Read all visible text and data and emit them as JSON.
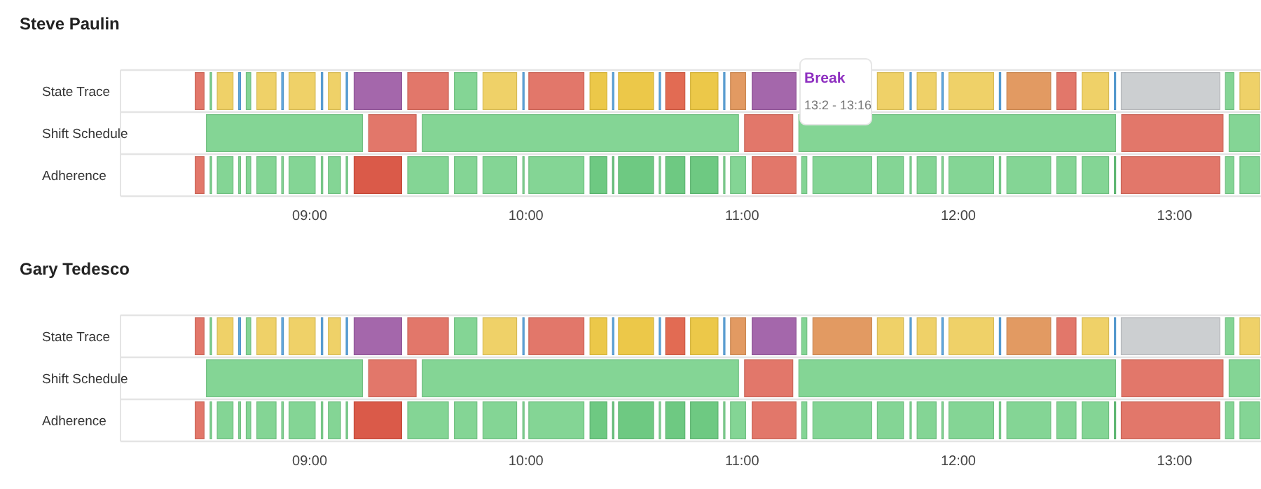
{
  "chart_data": [
    {
      "type": "bar",
      "orientation": "horizontal",
      "title": "Steve Paulin",
      "categories": [
        "State Trace",
        "Shift Schedule",
        "Adherence"
      ],
      "xlim": [
        8.125,
        13.4
      ],
      "xticks": [
        {
          "value": 9,
          "label": "09:00"
        },
        {
          "value": 10,
          "label": "10:00"
        },
        {
          "value": 11,
          "label": "11:00"
        },
        {
          "value": 12,
          "label": "12:00"
        },
        {
          "value": 13,
          "label": "13:00"
        }
      ],
      "annotations": [
        "Break",
        "13:2 - 13:16"
      ],
      "series": [
        {
          "base": [
            8.464,
            8.516,
            8.464
          ],
          "values": [
            0.054,
            0.735,
            0.054
          ],
          "colors": [
            "#e07062",
            "#7dd38f",
            "#e07062"
          ]
        },
        {
          "base": [
            8.533,
            9.266,
            8.533
          ],
          "values": [
            0.02,
            0.233,
            0.02
          ],
          "colors": [
            "#7dd38f",
            "#e07062",
            "#7dd38f"
          ]
        },
        {
          "base": [
            8.566,
            9.514,
            8.566
          ],
          "values": [
            0.086,
            1.476,
            0.086
          ],
          "colors": [
            "#eecf60",
            "#7dd38f",
            "#7dd38f"
          ]
        },
        {
          "base": [
            8.665,
            11.005,
            8.665
          ],
          "values": [
            0.022,
            0.236,
            0.022
          ],
          "colors": [
            "#5aa5df",
            "#e07062",
            "#7dd38f"
          ]
        },
        {
          "base": [
            8.7,
            11.256,
            8.7
          ],
          "values": [
            0.034,
            1.478,
            0.034
          ],
          "colors": [
            "#7dd38f",
            "#7dd38f",
            "#7dd38f"
          ]
        },
        {
          "base": [
            8.749,
            12.749,
            8.749
          ],
          "values": [
            0.102,
            0.482,
            0.102
          ],
          "colors": [
            "#eecf60",
            "#e07062",
            "#7dd38f"
          ]
        },
        {
          "base": [
            8.864,
            13.246,
            8.864
          ],
          "values": [
            0.021,
            0.154,
            0.021
          ],
          "colors": [
            "#5aa5df",
            "#7dd38f",
            "#7dd38f"
          ]
        },
        {
          "base": [
            8.898,
            null,
            8.898
          ],
          "values": [
            0.134,
            null,
            0.134
          ],
          "colors": [
            "#eecf60",
            null,
            "#7dd38f"
          ]
        },
        {
          "base": [
            9.047,
            null,
            9.047
          ],
          "values": [
            0.02,
            null,
            0.02
          ],
          "colors": [
            "#5aa5df",
            null,
            "#7dd38f"
          ]
        },
        {
          "base": [
            9.08,
            null,
            9.08
          ],
          "values": [
            0.069,
            null,
            0.069
          ],
          "colors": [
            "#eecf60",
            null,
            "#7dd38f"
          ]
        },
        {
          "base": [
            9.162,
            null,
            9.162
          ],
          "values": [
            0.02,
            null,
            0.02
          ],
          "colors": [
            "#5aa5df",
            null,
            "#7dd38f"
          ]
        },
        {
          "base": [
            9.199,
            null,
            9.199
          ],
          "values": [
            0.233,
            null,
            0.233
          ],
          "colors": [
            "#9f5fa7",
            null,
            "#d8513f"
          ]
        },
        {
          "base": [
            9.447,
            null,
            9.447
          ],
          "values": [
            0.201,
            null,
            0.201
          ],
          "colors": [
            "#e07062",
            null,
            "#7dd38f"
          ]
        },
        {
          "base": [
            9.663,
            null,
            9.663
          ],
          "values": [
            0.117,
            null,
            0.117
          ],
          "colors": [
            "#7dd38f",
            null,
            "#7dd38f"
          ]
        },
        {
          "base": [
            9.795,
            null,
            9.795
          ],
          "values": [
            0.169,
            null,
            0.169
          ],
          "colors": [
            "#eecf60",
            null,
            "#7dd38f"
          ]
        },
        {
          "base": [
            9.979,
            null,
            9.979
          ],
          "values": [
            0.017,
            null,
            0.017
          ],
          "colors": [
            "#5aa5df",
            null,
            "#7dd38f"
          ]
        },
        {
          "base": [
            10.007,
            null,
            10.007
          ],
          "values": [
            0.268,
            null,
            0.268
          ],
          "colors": [
            "#e07062",
            null,
            "#7dd38f"
          ]
        },
        {
          "base": [
            10.29,
            null,
            10.29
          ],
          "values": [
            0.091,
            null,
            0.091
          ],
          "colors": [
            "#ebc53f",
            null,
            "#66c67b"
          ]
        },
        {
          "base": [
            10.394,
            null,
            10.394
          ],
          "values": [
            0.015,
            null,
            0.015
          ],
          "colors": [
            "#5aa5df",
            null,
            "#66c67b"
          ]
        },
        {
          "base": [
            10.422,
            null,
            10.422
          ],
          "values": [
            0.175,
            null,
            0.175
          ],
          "colors": [
            "#ebc53f",
            null,
            "#66c67b"
          ]
        },
        {
          "base": [
            10.61,
            null,
            10.61
          ],
          "values": [
            0.017,
            null,
            0.017
          ],
          "colors": [
            "#5aa5df",
            null,
            "#7dd38f"
          ]
        },
        {
          "base": [
            10.64,
            null,
            10.64
          ],
          "values": [
            0.102,
            null,
            0.102
          ],
          "colors": [
            "#e0634a",
            null,
            "#66c67b"
          ]
        },
        {
          "base": [
            10.755,
            null,
            10.755
          ],
          "values": [
            0.14,
            null,
            0.14
          ],
          "colors": [
            "#ebc53f",
            null,
            "#66c67b"
          ]
        },
        {
          "base": [
            10.908,
            null,
            10.908
          ],
          "values": [
            0.015,
            null,
            0.015
          ],
          "colors": [
            "#5aa5df",
            null,
            "#7dd38f"
          ]
        },
        {
          "base": [
            10.94,
            null,
            10.94
          ],
          "values": [
            0.083,
            null,
            0.083
          ],
          "colors": [
            "#e0955a",
            null,
            "#7dd38f"
          ]
        },
        {
          "base": [
            11.04,
            null,
            11.04
          ],
          "values": [
            0.216,
            null,
            0.216
          ],
          "colors": [
            "#9f5fa7",
            null,
            "#e07062"
          ]
        },
        {
          "base": [
            null,
            null,
            11.269
          ],
          "values": [
            null,
            null,
            0.037
          ],
          "colors": [
            null,
            null,
            "#7dd38f"
          ]
        },
        {
          "base": [
            null,
            null,
            11.321
          ],
          "values": [
            null,
            null,
            0.285
          ],
          "colors": [
            null,
            null,
            "#7dd38f"
          ]
        },
        {
          "base": [
            11.619,
            null,
            11.619
          ],
          "values": [
            0.134,
            null,
            0.134
          ],
          "colors": [
            "#eecf60",
            null,
            "#7dd38f"
          ]
        },
        {
          "base": [
            11.77,
            null,
            11.77
          ],
          "values": [
            0.016,
            null,
            0.016
          ],
          "colors": [
            "#5aa5df",
            null,
            "#7dd38f"
          ]
        },
        {
          "base": [
            11.803,
            null,
            11.803
          ],
          "values": [
            0.101,
            null,
            0.101
          ],
          "colors": [
            "#eecf60",
            null,
            "#7dd38f"
          ]
        },
        {
          "base": [
            11.917,
            null,
            11.917
          ],
          "values": [
            0.02,
            null,
            0.02
          ],
          "colors": [
            "#5aa5df",
            null,
            "#7dd38f"
          ]
        },
        {
          "base": [
            11.95,
            null,
            11.95
          ],
          "values": [
            0.22,
            null,
            0.22
          ],
          "colors": [
            "#eecf60",
            null,
            "#7dd38f"
          ]
        },
        {
          "base": [
            12.183,
            null,
            12.183
          ],
          "values": [
            0.02,
            null,
            0.02
          ],
          "colors": [
            "#5aa5df",
            null,
            "#7dd38f"
          ]
        },
        {
          "base": [
            12.218,
            null,
            12.218
          ],
          "values": [
            0.216,
            null,
            0.216
          ],
          "colors": [
            "#e0955a",
            null,
            "#7dd38f"
          ]
        },
        {
          "base": [
            12.449,
            null,
            12.449
          ],
          "values": [
            0.102,
            null,
            0.102
          ],
          "colors": [
            "#e07062",
            null,
            "#7dd38f"
          ]
        },
        {
          "base": [
            12.566,
            null,
            12.566
          ],
          "values": [
            0.136,
            null,
            0.136
          ],
          "colors": [
            "#eecf60",
            null,
            "#7dd38f"
          ]
        },
        {
          "base": [
            12.715,
            null,
            12.715
          ],
          "values": [
            0.017,
            null,
            0.017
          ],
          "colors": [
            "#5aa5df",
            null,
            "#66c67b"
          ]
        },
        {
          "base": [
            12.747,
            null,
            12.747
          ],
          "values": [
            0.469,
            null,
            0.469
          ],
          "colors": [
            "#c9cccf",
            null,
            "#e07062"
          ]
        },
        {
          "base": [
            13.229,
            null,
            13.229
          ],
          "values": [
            0.052,
            null,
            0.052
          ],
          "colors": [
            "#7dd38f",
            null,
            "#7dd38f"
          ]
        },
        {
          "base": [
            13.296,
            null,
            13.296
          ],
          "values": [
            0.104,
            null,
            0.104
          ],
          "colors": [
            "#eecf60",
            null,
            "#7dd38f"
          ]
        }
      ]
    },
    {
      "type": "bar",
      "orientation": "horizontal",
      "title": "Gary Tedesco",
      "categories": [
        "State Trace",
        "Shift Schedule",
        "Adherence"
      ],
      "xlim": [
        8.125,
        13.4
      ],
      "xticks": [
        {
          "value": 9,
          "label": "09:00"
        },
        {
          "value": 10,
          "label": "10:00"
        },
        {
          "value": 11,
          "label": "11:00"
        },
        {
          "value": 12,
          "label": "12:00"
        },
        {
          "value": 13,
          "label": "13:00"
        }
      ],
      "series": [
        {
          "base": [
            8.464,
            8.516,
            8.464
          ],
          "values": [
            0.054,
            0.735,
            0.054
          ],
          "colors": [
            "#e07062",
            "#7dd38f",
            "#e07062"
          ]
        },
        {
          "base": [
            8.533,
            9.266,
            8.533
          ],
          "values": [
            0.02,
            0.233,
            0.02
          ],
          "colors": [
            "#7dd38f",
            "#e07062",
            "#7dd38f"
          ]
        },
        {
          "base": [
            8.566,
            9.514,
            8.566
          ],
          "values": [
            0.086,
            1.476,
            0.086
          ],
          "colors": [
            "#eecf60",
            "#7dd38f",
            "#7dd38f"
          ]
        },
        {
          "base": [
            8.665,
            11.005,
            8.665
          ],
          "values": [
            0.022,
            0.236,
            0.022
          ],
          "colors": [
            "#5aa5df",
            "#e07062",
            "#7dd38f"
          ]
        },
        {
          "base": [
            8.7,
            11.256,
            8.7
          ],
          "values": [
            0.034,
            1.478,
            0.034
          ],
          "colors": [
            "#7dd38f",
            "#7dd38f",
            "#7dd38f"
          ]
        },
        {
          "base": [
            8.749,
            12.749,
            8.749
          ],
          "values": [
            0.102,
            0.482,
            0.102
          ],
          "colors": [
            "#eecf60",
            "#e07062",
            "#7dd38f"
          ]
        },
        {
          "base": [
            8.864,
            13.246,
            8.864
          ],
          "values": [
            0.021,
            0.154,
            0.021
          ],
          "colors": [
            "#5aa5df",
            "#7dd38f",
            "#7dd38f"
          ]
        },
        {
          "base": [
            8.898,
            null,
            8.898
          ],
          "values": [
            0.134,
            null,
            0.134
          ],
          "colors": [
            "#eecf60",
            null,
            "#7dd38f"
          ]
        },
        {
          "base": [
            9.047,
            null,
            9.047
          ],
          "values": [
            0.02,
            null,
            0.02
          ],
          "colors": [
            "#5aa5df",
            null,
            "#7dd38f"
          ]
        },
        {
          "base": [
            9.08,
            null,
            9.08
          ],
          "values": [
            0.069,
            null,
            0.069
          ],
          "colors": [
            "#eecf60",
            null,
            "#7dd38f"
          ]
        },
        {
          "base": [
            9.162,
            null,
            9.162
          ],
          "values": [
            0.02,
            null,
            0.02
          ],
          "colors": [
            "#5aa5df",
            null,
            "#7dd38f"
          ]
        },
        {
          "base": [
            9.199,
            null,
            9.199
          ],
          "values": [
            0.233,
            null,
            0.233
          ],
          "colors": [
            "#9f5fa7",
            null,
            "#d8513f"
          ]
        },
        {
          "base": [
            9.447,
            null,
            9.447
          ],
          "values": [
            0.201,
            null,
            0.201
          ],
          "colors": [
            "#e07062",
            null,
            "#7dd38f"
          ]
        },
        {
          "base": [
            9.663,
            null,
            9.663
          ],
          "values": [
            0.117,
            null,
            0.117
          ],
          "colors": [
            "#7dd38f",
            null,
            "#7dd38f"
          ]
        },
        {
          "base": [
            9.795,
            null,
            9.795
          ],
          "values": [
            0.169,
            null,
            0.169
          ],
          "colors": [
            "#eecf60",
            null,
            "#7dd38f"
          ]
        },
        {
          "base": [
            9.979,
            null,
            9.979
          ],
          "values": [
            0.017,
            null,
            0.017
          ],
          "colors": [
            "#5aa5df",
            null,
            "#7dd38f"
          ]
        },
        {
          "base": [
            10.007,
            null,
            10.007
          ],
          "values": [
            0.268,
            null,
            0.268
          ],
          "colors": [
            "#e07062",
            null,
            "#7dd38f"
          ]
        },
        {
          "base": [
            10.29,
            null,
            10.29
          ],
          "values": [
            0.091,
            null,
            0.091
          ],
          "colors": [
            "#ebc53f",
            null,
            "#66c67b"
          ]
        },
        {
          "base": [
            10.394,
            null,
            10.394
          ],
          "values": [
            0.015,
            null,
            0.015
          ],
          "colors": [
            "#5aa5df",
            null,
            "#66c67b"
          ]
        },
        {
          "base": [
            10.422,
            null,
            10.422
          ],
          "values": [
            0.175,
            null,
            0.175
          ],
          "colors": [
            "#ebc53f",
            null,
            "#66c67b"
          ]
        },
        {
          "base": [
            10.61,
            null,
            10.61
          ],
          "values": [
            0.017,
            null,
            0.017
          ],
          "colors": [
            "#5aa5df",
            null,
            "#7dd38f"
          ]
        },
        {
          "base": [
            10.64,
            null,
            10.64
          ],
          "values": [
            0.102,
            null,
            0.102
          ],
          "colors": [
            "#e0634a",
            null,
            "#66c67b"
          ]
        },
        {
          "base": [
            10.755,
            null,
            10.755
          ],
          "values": [
            0.14,
            null,
            0.14
          ],
          "colors": [
            "#ebc53f",
            null,
            "#66c67b"
          ]
        },
        {
          "base": [
            10.908,
            null,
            10.908
          ],
          "values": [
            0.015,
            null,
            0.015
          ],
          "colors": [
            "#5aa5df",
            null,
            "#7dd38f"
          ]
        },
        {
          "base": [
            10.94,
            null,
            10.94
          ],
          "values": [
            0.083,
            null,
            0.083
          ],
          "colors": [
            "#e0955a",
            null,
            "#7dd38f"
          ]
        },
        {
          "base": [
            11.04,
            null,
            11.04
          ],
          "values": [
            0.216,
            null,
            0.216
          ],
          "colors": [
            "#9f5fa7",
            null,
            "#e07062"
          ]
        },
        {
          "base": [
            11.269,
            null,
            11.269
          ],
          "values": [
            0.037,
            null,
            0.037
          ],
          "colors": [
            "#7dd38f",
            null,
            "#7dd38f"
          ]
        },
        {
          "base": [
            11.321,
            null,
            11.321
          ],
          "values": [
            0.285,
            null,
            0.285
          ],
          "colors": [
            "#e0955a",
            null,
            "#7dd38f"
          ]
        },
        {
          "base": [
            11.619,
            null,
            11.619
          ],
          "values": [
            0.134,
            null,
            0.134
          ],
          "colors": [
            "#eecf60",
            null,
            "#7dd38f"
          ]
        },
        {
          "base": [
            11.77,
            null,
            11.77
          ],
          "values": [
            0.016,
            null,
            0.016
          ],
          "colors": [
            "#5aa5df",
            null,
            "#7dd38f"
          ]
        },
        {
          "base": [
            11.803,
            null,
            11.803
          ],
          "values": [
            0.101,
            null,
            0.101
          ],
          "colors": [
            "#eecf60",
            null,
            "#7dd38f"
          ]
        },
        {
          "base": [
            11.917,
            null,
            11.917
          ],
          "values": [
            0.02,
            null,
            0.02
          ],
          "colors": [
            "#5aa5df",
            null,
            "#7dd38f"
          ]
        },
        {
          "base": [
            11.95,
            null,
            11.95
          ],
          "values": [
            0.22,
            null,
            0.22
          ],
          "colors": [
            "#eecf60",
            null,
            "#7dd38f"
          ]
        },
        {
          "base": [
            12.183,
            null,
            12.183
          ],
          "values": [
            0.02,
            null,
            0.02
          ],
          "colors": [
            "#5aa5df",
            null,
            "#7dd38f"
          ]
        },
        {
          "base": [
            12.218,
            null,
            12.218
          ],
          "values": [
            0.216,
            null,
            0.216
          ],
          "colors": [
            "#e0955a",
            null,
            "#7dd38f"
          ]
        },
        {
          "base": [
            12.449,
            null,
            12.449
          ],
          "values": [
            0.102,
            null,
            0.102
          ],
          "colors": [
            "#e07062",
            null,
            "#7dd38f"
          ]
        },
        {
          "base": [
            12.566,
            null,
            12.566
          ],
          "values": [
            0.136,
            null,
            0.136
          ],
          "colors": [
            "#eecf60",
            null,
            "#7dd38f"
          ]
        },
        {
          "base": [
            12.715,
            null,
            12.715
          ],
          "values": [
            0.017,
            null,
            0.017
          ],
          "colors": [
            "#5aa5df",
            null,
            "#66c67b"
          ]
        },
        {
          "base": [
            12.747,
            null,
            12.747
          ],
          "values": [
            0.469,
            null,
            0.469
          ],
          "colors": [
            "#c9cccf",
            null,
            "#e07062"
          ]
        },
        {
          "base": [
            13.229,
            null,
            13.229
          ],
          "values": [
            0.052,
            null,
            0.052
          ],
          "colors": [
            "#7dd38f",
            null,
            "#7dd38f"
          ]
        },
        {
          "base": [
            13.296,
            null,
            13.296
          ],
          "values": [
            0.104,
            null,
            0.104
          ],
          "colors": [
            "#eecf60",
            null,
            "#7dd38f"
          ]
        }
      ]
    }
  ]
}
